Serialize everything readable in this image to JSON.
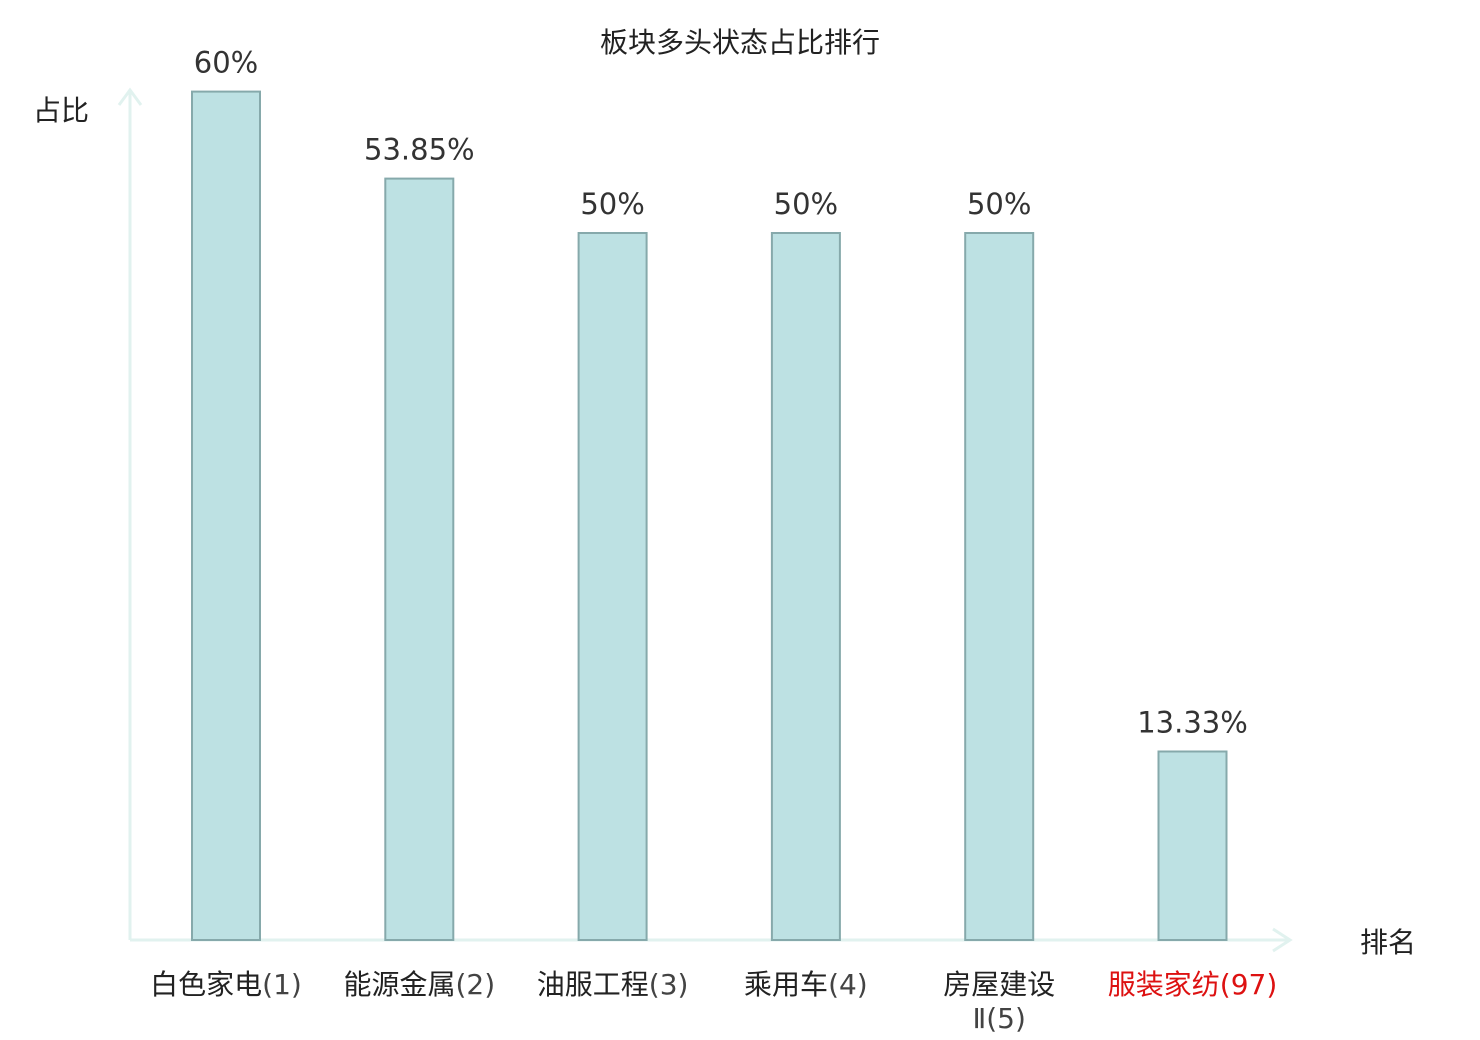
{
  "chart_data": {
    "type": "bar",
    "title": "板块多头状态占比排行",
    "ylabel": "占比",
    "xlabel": "排名",
    "ylim": [
      0,
      65
    ],
    "grid": false,
    "categories": [
      {
        "name": "白色家电",
        "rank": "(1)",
        "highlight": false
      },
      {
        "name": "能源金属",
        "rank": "(2)",
        "highlight": false
      },
      {
        "name": "油服工程",
        "rank": "(3)",
        "highlight": false
      },
      {
        "name": "乘用车",
        "rank": "(4)",
        "highlight": false
      },
      {
        "name": "房屋建设",
        "rank": "Ⅱ(5)",
        "highlight": false
      },
      {
        "name": "服装家纺",
        "rank": "(97)",
        "highlight": true
      }
    ],
    "values": [
      60,
      53.85,
      50,
      50,
      50,
      13.33
    ],
    "value_labels": [
      "60%",
      "53.85%",
      "50%",
      "50%",
      "50%",
      "13.33%"
    ]
  },
  "colors": {
    "bar_fill": "#bde1e3",
    "bar_stroke": "#86a9ab",
    "axis": "#e1f2ef",
    "text": "#222222",
    "highlight_text": "#dd1111"
  }
}
